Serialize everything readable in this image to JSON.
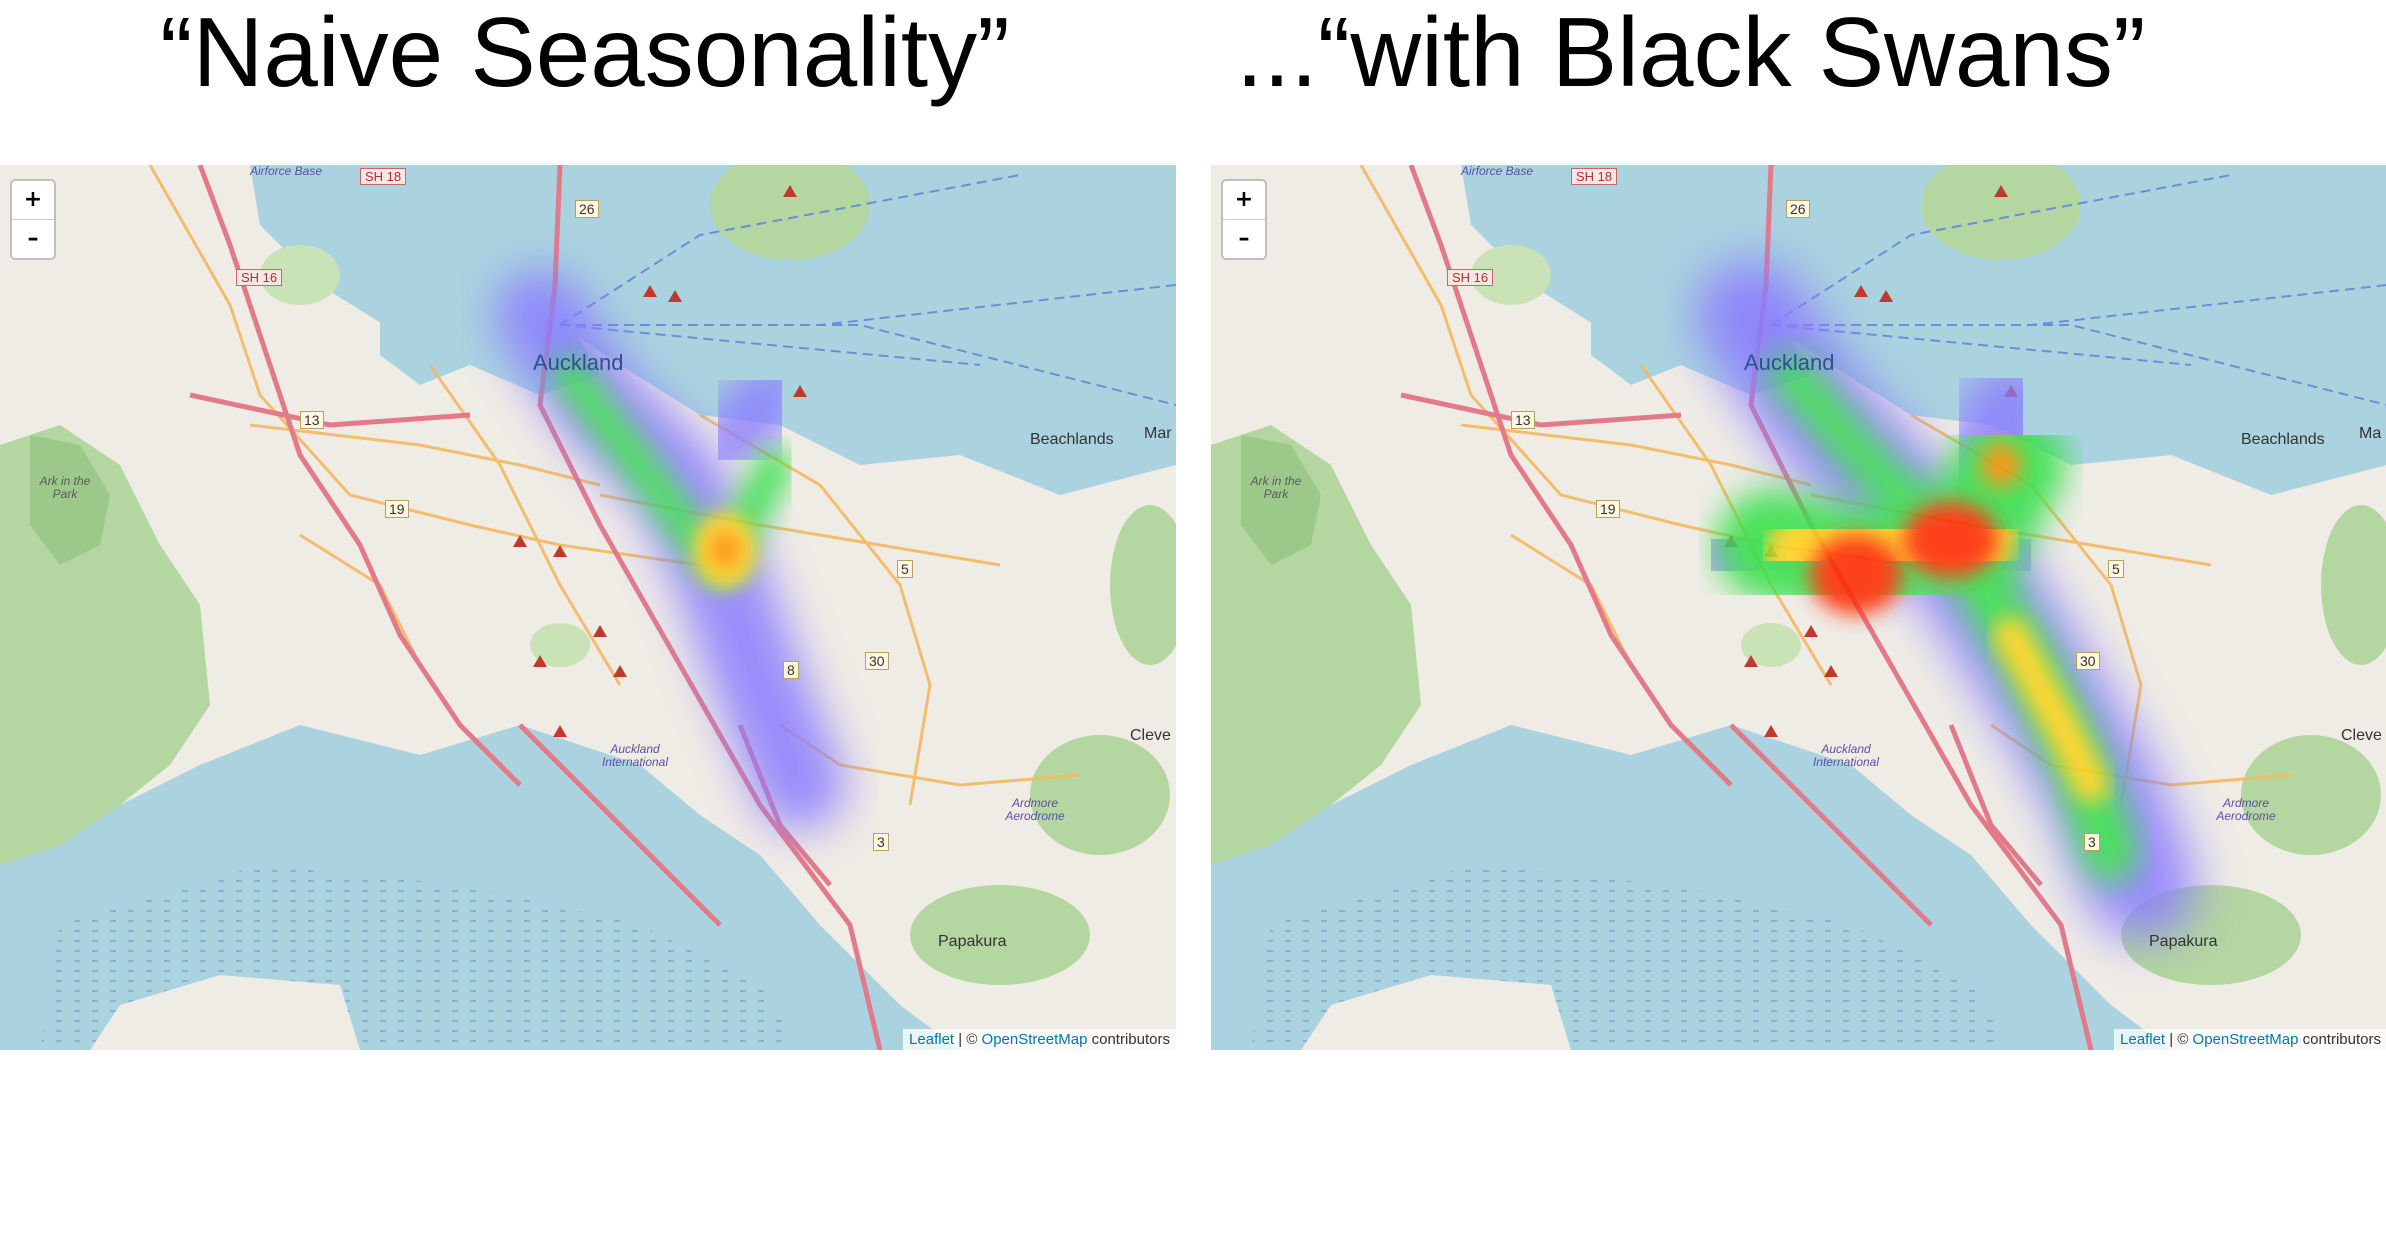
{
  "titles": {
    "left": "“Naive Seasonality”",
    "right": "...“with Black Swans”"
  },
  "maps": [
    {
      "zoom_in": "+",
      "zoom_out": "–",
      "attribution": {
        "leaflet": "Leaflet",
        "sep": " | © ",
        "osm": "OpenStreetMap",
        "tail": " contributors"
      },
      "labels": {
        "auckland": "Auckland",
        "beachlands": "Beachlands",
        "mar": "Mar",
        "papakura": "Papakura",
        "cleve": "Cleve",
        "ark": "Ark in the Park",
        "airport": "Auckland International",
        "ardmore": "Ardmore Aerodrome",
        "airforce": "Airforce Base",
        "sh18": "SH 18",
        "sh16": "SH 16",
        "r13": "13",
        "r19": "19",
        "r26": "26",
        "r5": "5",
        "r30": "30",
        "r3": "3",
        "r8": "8"
      }
    },
    {
      "zoom_in": "+",
      "zoom_out": "–",
      "attribution": {
        "leaflet": "Leaflet",
        "sep": " | © ",
        "osm": "OpenStreetMap",
        "tail": " contributors"
      },
      "labels": {
        "auckland": "Auckland",
        "beachlands": "Beachlands",
        "mar": "Ma",
        "papakura": "Papakura",
        "cleve": "Cleve",
        "ark": "Ark in the Park",
        "airport": "Auckland International",
        "ardmore": "Ardmore Aerodrome",
        "airforce": "Airforce Base",
        "sh18": "SH 18",
        "sh16": "SH 16",
        "r13": "13",
        "r19": "19",
        "r26": "26",
        "r5": "5",
        "r30": "30",
        "r3": "3"
      }
    }
  ],
  "colors": {
    "water": "#aad3df",
    "land": "#efece6",
    "park": "#b4d6a0",
    "motorway": "#e37a8a",
    "road": "#f4b860",
    "heat_low": "#8a7cff",
    "heat_mid": "#35e04a",
    "heat_high": "#ff2a00"
  }
}
